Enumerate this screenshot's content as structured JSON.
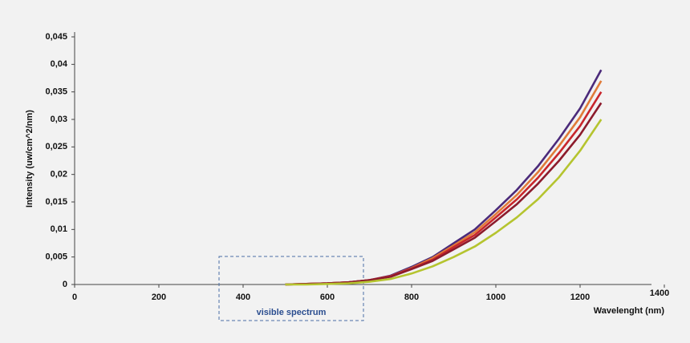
{
  "chart_data": {
    "type": "line",
    "xlabel": "Wavelenght (nm)",
    "ylabel": "Intensity (uw/cm^2/nm)",
    "annotation": "visible spectrum",
    "x": [
      500,
      550,
      600,
      650,
      700,
      750,
      800,
      850,
      900,
      950,
      1000,
      1050,
      1100,
      1150,
      1200,
      1250
    ],
    "series": [
      {
        "color": "#4b2a7a",
        "values": [
          0,
          0.0001,
          0.0002,
          0.0004,
          0.0008,
          0.0016,
          0.0032,
          0.005,
          0.0075,
          0.01,
          0.0135,
          0.0172,
          0.0215,
          0.0265,
          0.032,
          0.039
        ]
      },
      {
        "color": "#e07b39",
        "values": [
          0,
          0.0001,
          0.0002,
          0.0004,
          0.0008,
          0.0015,
          0.003,
          0.0048,
          0.0071,
          0.0095,
          0.0128,
          0.0163,
          0.0204,
          0.0252,
          0.0304,
          0.037
        ]
      },
      {
        "color": "#c8262c",
        "values": [
          0,
          0.0001,
          0.0002,
          0.0004,
          0.0008,
          0.0015,
          0.0029,
          0.0045,
          0.0068,
          0.009,
          0.0122,
          0.0155,
          0.0194,
          0.0239,
          0.0288,
          0.035
        ]
      },
      {
        "color": "#8c1b2c",
        "values": [
          0,
          0.0001,
          0.0002,
          0.0004,
          0.0008,
          0.0014,
          0.0028,
          0.0043,
          0.0064,
          0.0085,
          0.0115,
          0.0146,
          0.0183,
          0.0225,
          0.0272,
          0.033
        ]
      },
      {
        "color": "#b5c42f",
        "values": [
          0,
          0,
          0.0001,
          0.0002,
          0.0005,
          0.001,
          0.002,
          0.0033,
          0.005,
          0.0069,
          0.0094,
          0.0122,
          0.0155,
          0.0195,
          0.0243,
          0.03
        ]
      }
    ],
    "xlim": [
      0,
      1400
    ],
    "xticks": [
      0,
      200,
      400,
      600,
      800,
      1000,
      1200,
      1400
    ],
    "ylim": [
      0,
      0.045
    ],
    "yticks": [
      0,
      {
        "value": 0.005,
        "label": "0,005"
      },
      {
        "value": 0.01,
        "label": "0,01"
      },
      {
        "value": 0.015,
        "label": "0,015"
      },
      {
        "value": 0.02,
        "label": "0,02"
      },
      {
        "value": 0.025,
        "label": "0,025"
      },
      {
        "value": 0.03,
        "label": "0,03"
      },
      {
        "value": 0.035,
        "label": "0,035"
      },
      {
        "value": 0.04,
        "label": "0,04"
      },
      {
        "value": 0.045,
        "label": "0,045"
      }
    ],
    "grid": false
  }
}
